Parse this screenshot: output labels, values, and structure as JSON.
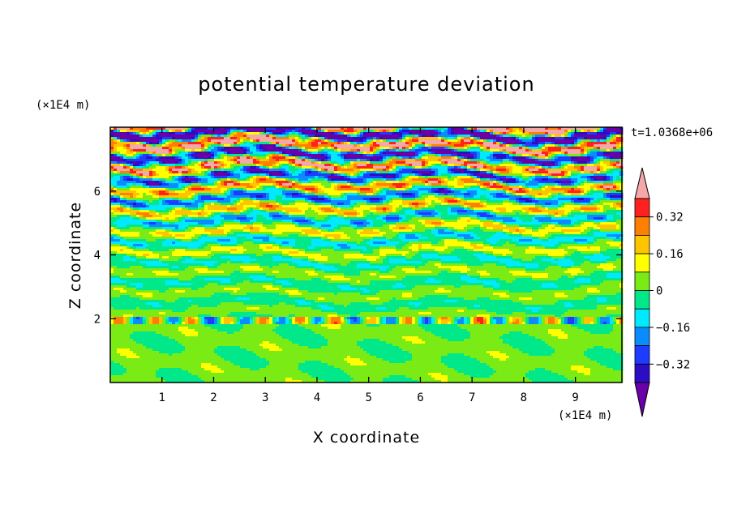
{
  "chart_data": {
    "type": "heatmap",
    "title": "potential temperature deviation",
    "xlabel": "X coordinate",
    "ylabel": "Z coordinate",
    "x_unit": "(×1E4 m)",
    "y_unit": "(×1E4 m)",
    "time_label": "t=1.0368e+06",
    "xlim": [
      0,
      9.9
    ],
    "ylim": [
      0,
      8
    ],
    "x_ticks": [
      1,
      2,
      3,
      4,
      5,
      6,
      7,
      8,
      9
    ],
    "y_ticks": [
      2,
      4,
      6
    ],
    "colorbar": {
      "levels": [
        -0.4,
        -0.32,
        -0.24,
        -0.16,
        -0.08,
        0,
        0.08,
        0.16,
        0.24,
        0.32,
        0.4
      ],
      "colors": [
        "#6a00a8",
        "#2b0ec4",
        "#1e3cff",
        "#0a8cff",
        "#00eaff",
        "#00e88a",
        "#7aeb14",
        "#ffff00",
        "#ffc400",
        "#ff8000",
        "#ff2020",
        "#f4a8a8"
      ],
      "tick_labels": [
        "0.32",
        "0.16",
        "0",
        "-0.16",
        "-0.32"
      ],
      "tick_values": [
        0.32,
        0.16,
        0,
        -0.16,
        -0.32
      ],
      "extend": "both"
    },
    "layers_note": "",
    "grid": false
  }
}
